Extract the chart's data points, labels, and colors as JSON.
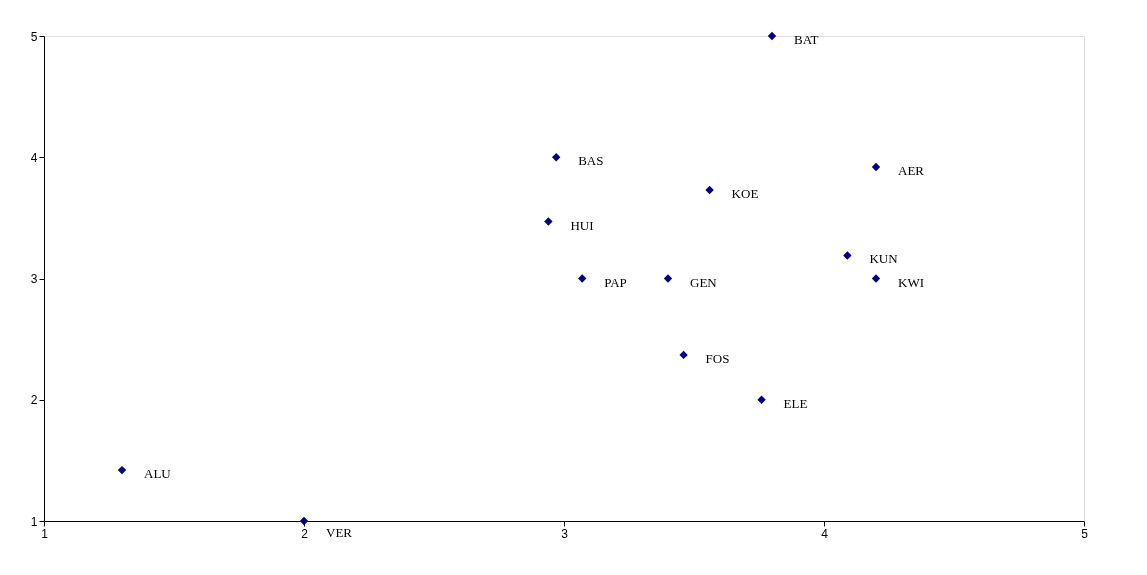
{
  "chart_data": {
    "type": "scatter",
    "x": [
      3.8,
      2.97,
      4.2,
      3.56,
      2.94,
      4.09,
      3.07,
      3.4,
      4.2,
      3.46,
      3.76,
      1.3,
      2.0
    ],
    "values": [
      5.0,
      4.0,
      3.92,
      3.73,
      3.47,
      3.19,
      3.0,
      3.0,
      3.0,
      2.37,
      2.0,
      1.42,
      1.0
    ],
    "color": "#000080",
    "marker": "diamond",
    "xlim": [
      1,
      5
    ],
    "xticks": [
      1,
      2,
      3,
      4,
      5
    ],
    "ylim": [
      1,
      5
    ],
    "yticks": [
      1,
      2,
      3,
      4,
      5
    ],
    "grid": false,
    "annotations": [
      {
        "text": "BAT",
        "x": 3.8,
        "y": 5.0
      },
      {
        "text": "BAS",
        "x": 2.97,
        "y": 4.0
      },
      {
        "text": "AER",
        "x": 4.2,
        "y": 3.92
      },
      {
        "text": "KOE",
        "x": 3.56,
        "y": 3.73
      },
      {
        "text": "HUI",
        "x": 2.94,
        "y": 3.47
      },
      {
        "text": "KUN",
        "x": 4.09,
        "y": 3.19
      },
      {
        "text": "PAP",
        "x": 3.07,
        "y": 3.0
      },
      {
        "text": "GEN",
        "x": 3.4,
        "y": 3.0
      },
      {
        "text": "KWI",
        "x": 4.2,
        "y": 3.0
      },
      {
        "text": "FOS",
        "x": 3.46,
        "y": 2.37
      },
      {
        "text": "ELE",
        "x": 3.76,
        "y": 2.0
      },
      {
        "text": "ALU",
        "x": 1.3,
        "y": 1.42
      },
      {
        "text": "VER",
        "x": 2.0,
        "y": 1.0
      }
    ]
  }
}
